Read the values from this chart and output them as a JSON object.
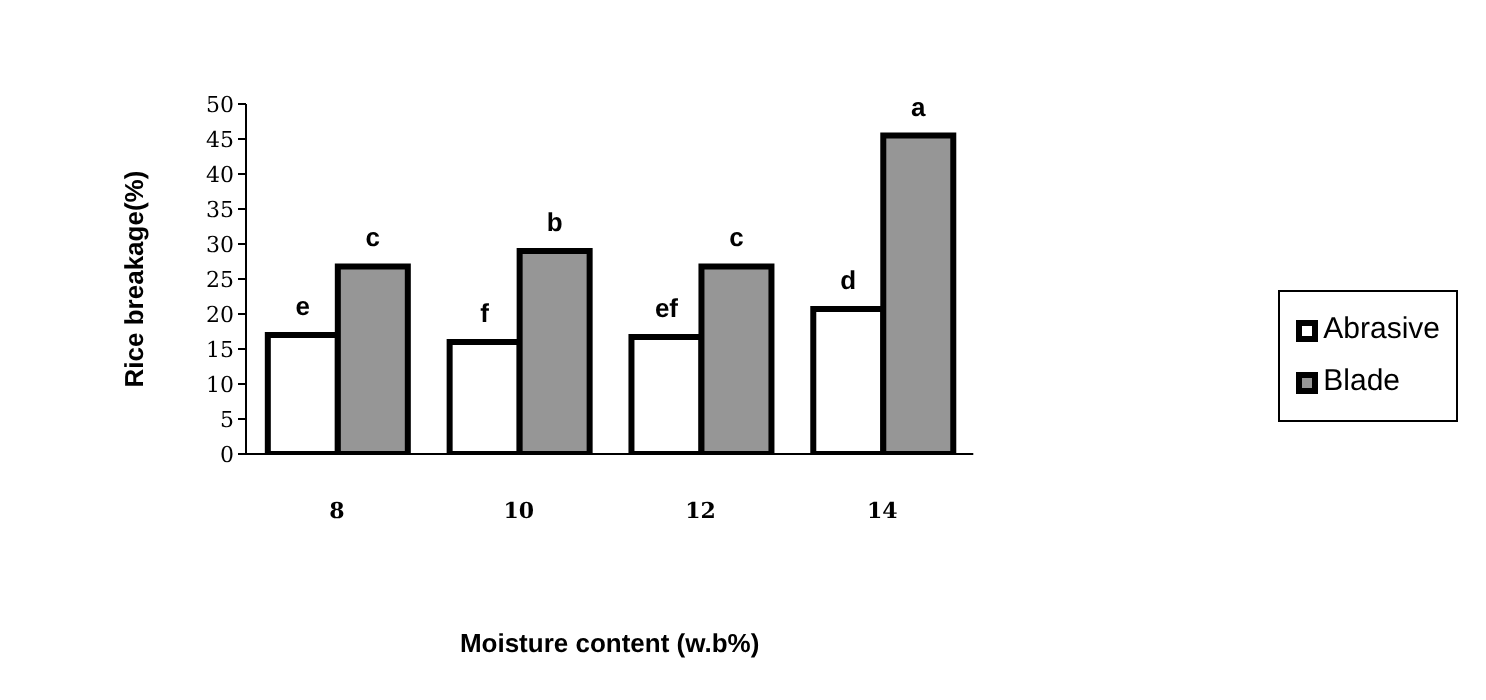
{
  "chart_data": {
    "type": "bar",
    "xlabel": "Moisture content (w.b%)",
    "ylabel": "Rice breakage(%)",
    "categories": [
      "8",
      "10",
      "12",
      "14"
    ],
    "series": [
      {
        "name": "Abrasive",
        "color": "#ffffff",
        "values": [
          17,
          16,
          16.7,
          20.7
        ],
        "value_labels": [
          "e",
          "f",
          "ef",
          "d"
        ]
      },
      {
        "name": "Blade",
        "color": "#969696",
        "values": [
          26.8,
          29,
          26.8,
          45.5
        ],
        "value_labels": [
          "c",
          "b",
          "c",
          "a"
        ]
      }
    ],
    "ylim": [
      0,
      50
    ],
    "yticks": [
      0,
      5,
      10,
      15,
      20,
      25,
      30,
      35,
      40,
      45,
      50
    ],
    "grid": false,
    "legend": "right"
  }
}
